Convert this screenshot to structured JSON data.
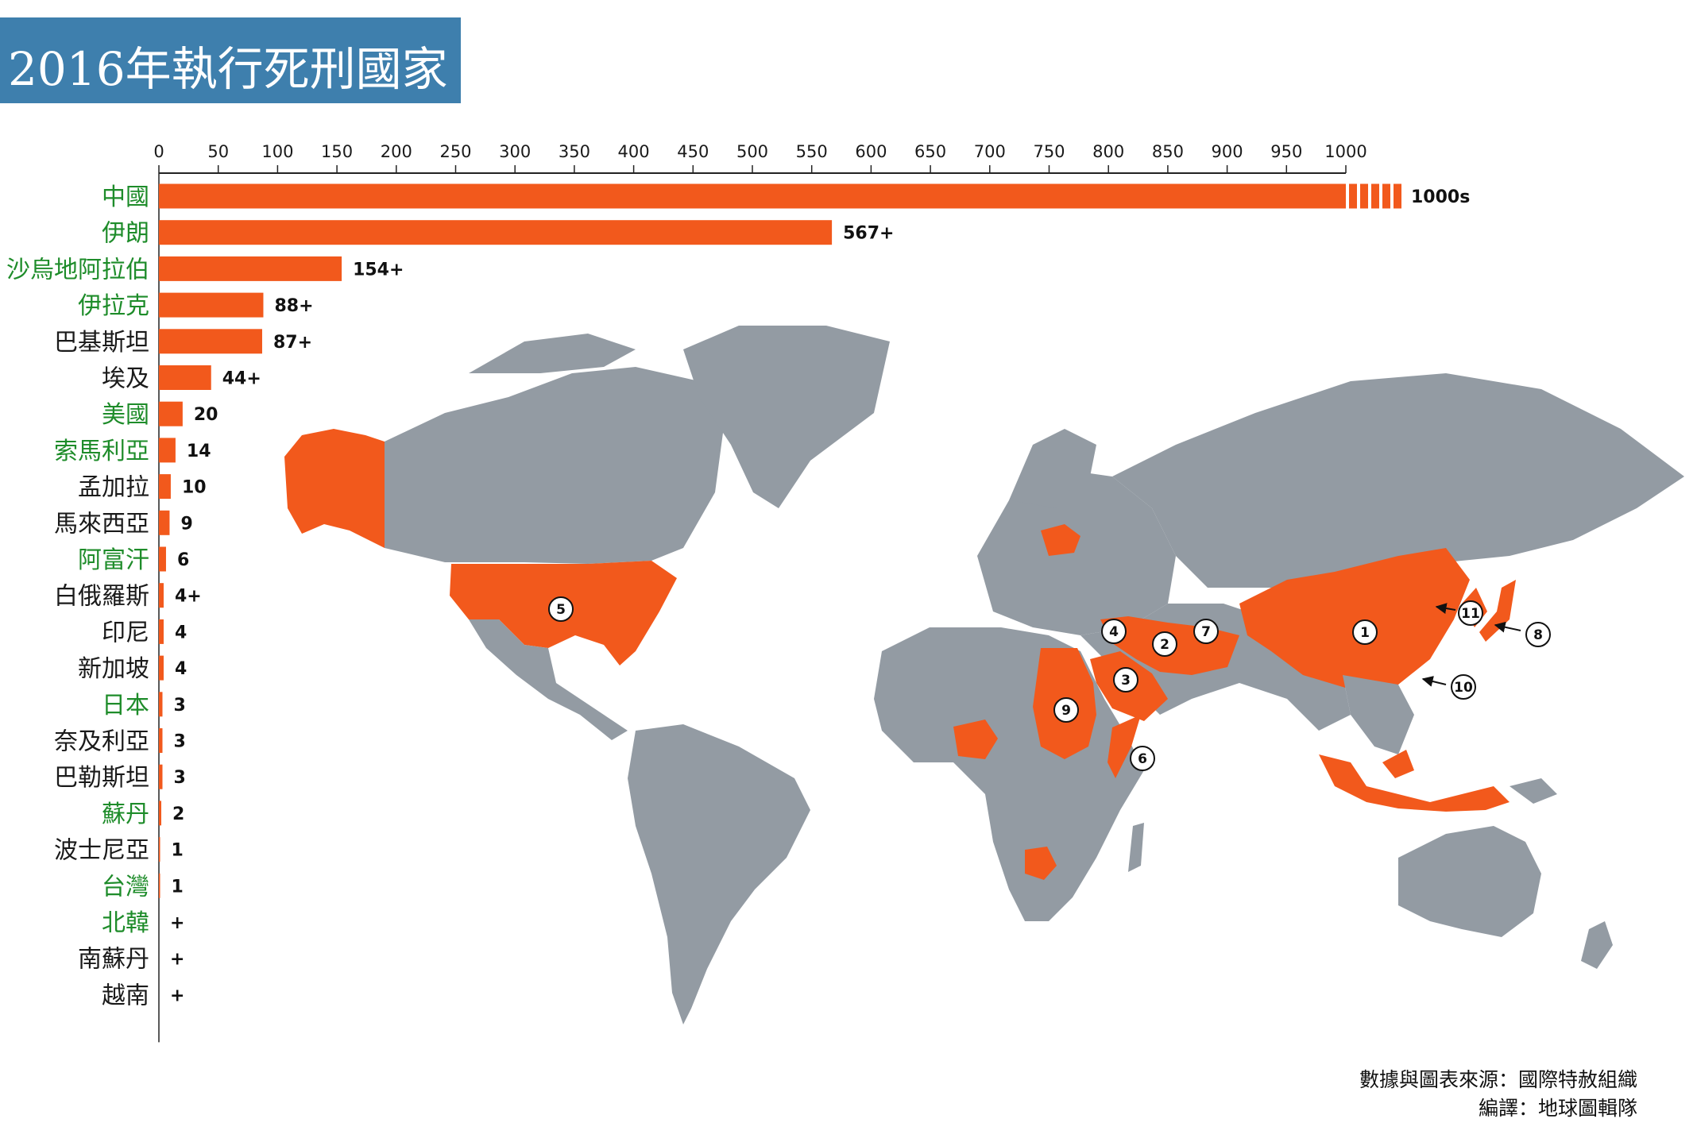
{
  "title": "2016年執行死刑國家",
  "source": {
    "line1": "數據與圖表來源：國際特赦組織",
    "line2": "編譯：地球圖輯隊"
  },
  "colors": {
    "bar": "#f2591c",
    "land": "#939ba3",
    "highlight_label": "#1e8c2a",
    "normal_label": "#1a1a1a",
    "banner": "#3e7fad"
  },
  "chart_data": {
    "type": "bar",
    "orientation": "horizontal",
    "title": "2016年執行死刑國家",
    "xlim": [
      0,
      1000
    ],
    "xticks": [
      0,
      50,
      100,
      150,
      200,
      250,
      300,
      350,
      400,
      450,
      500,
      550,
      600,
      650,
      700,
      750,
      800,
      850,
      900,
      950,
      1000
    ],
    "categories": [
      "中國",
      "伊朗",
      "沙烏地阿拉伯",
      "伊拉克",
      "巴基斯坦",
      "埃及",
      "美國",
      "索馬利亞",
      "孟加拉",
      "馬來西亞",
      "阿富汗",
      "白俄羅斯",
      "印尼",
      "新加坡",
      "日本",
      "奈及利亞",
      "巴勒斯坦",
      "蘇丹",
      "波士尼亞",
      "台灣",
      "北韓",
      "南蘇丹",
      "越南"
    ],
    "values": [
      1000,
      567,
      154,
      88,
      87,
      44,
      20,
      14,
      10,
      9,
      6,
      4,
      4,
      4,
      3,
      3,
      3,
      2,
      1,
      1,
      0,
      0,
      0
    ],
    "value_labels": [
      "1000s",
      "567+",
      "154+",
      "88+",
      "87+",
      "44+",
      "20",
      "14",
      "10",
      "9",
      "6",
      "4+",
      "4",
      "4",
      "3",
      "3",
      "3",
      "2",
      "1",
      "1",
      "+",
      "+",
      "+"
    ],
    "highlighted": [
      true,
      true,
      true,
      true,
      false,
      false,
      true,
      true,
      false,
      false,
      true,
      false,
      false,
      false,
      true,
      false,
      false,
      true,
      false,
      true,
      true,
      false,
      false
    ]
  },
  "map": {
    "markers": [
      {
        "number": "1",
        "region": "中國"
      },
      {
        "number": "2",
        "region": "伊朗"
      },
      {
        "number": "3",
        "region": "沙烏地阿拉伯"
      },
      {
        "number": "4",
        "region": "伊拉克"
      },
      {
        "number": "5",
        "region": "美國"
      },
      {
        "number": "6",
        "region": "索馬利亞"
      },
      {
        "number": "7",
        "region": "阿富汗"
      },
      {
        "number": "8",
        "region": "日本"
      },
      {
        "number": "9",
        "region": "蘇丹"
      },
      {
        "number": "10",
        "region": "台灣"
      },
      {
        "number": "11",
        "region": "北韓"
      }
    ]
  }
}
